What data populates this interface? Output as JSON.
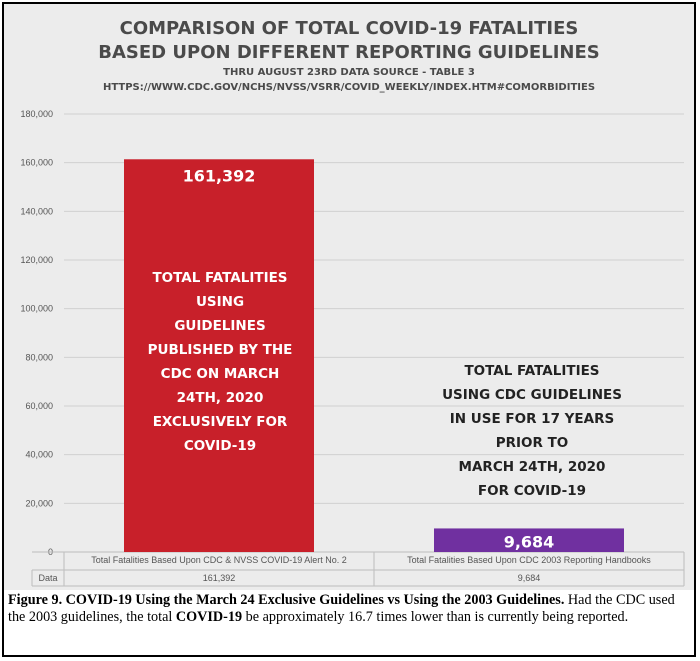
{
  "titles": {
    "line1": "COMPARISON OF TOTAL COVID-19 FATALITIES",
    "line2": "BASED UPON DIFFERENT REPORTING GUIDELINES",
    "line3": "THRU AUGUST 23RD DATA SOURCE - TABLE 3",
    "line4": "HTTPS://WWW.CDC.GOV/NCHS/NVSS/VSRR/COVID_WEEKLY/INDEX.HTM#COMORBIDITIES"
  },
  "chart_data": {
    "type": "bar",
    "categories": [
      "Total Fatalities Based Upon CDC & NVSS COVID-19 Alert No. 2",
      "Total Fatalities Based Upon CDC 2003 Reporting Handbooks"
    ],
    "values": [
      161392,
      9684
    ],
    "value_labels": [
      "161,392",
      "9,684"
    ],
    "colors": [
      "#c8202a",
      "#7030a0"
    ],
    "ylim": [
      0,
      180000
    ],
    "yticks": [
      0,
      20000,
      40000,
      60000,
      80000,
      100000,
      120000,
      140000,
      160000,
      180000
    ],
    "ytick_labels": [
      "0",
      "20,000",
      "40,000",
      "60,000",
      "80,000",
      "100,000",
      "120,000",
      "140,000",
      "160,000",
      "180,000"
    ],
    "grid": true,
    "table_row_label": "Data",
    "table_values": [
      "161,392",
      "9,684"
    ]
  },
  "annotations": {
    "bar1": [
      "TOTAL FATALITIES",
      "USING",
      "GUIDELINES",
      "PUBLISHED BY THE",
      "CDC ON MARCH",
      "24TH, 2020",
      "EXCLUSIVELY FOR",
      "COVID-19"
    ],
    "bar2": [
      "TOTAL FATALITIES",
      "USING CDC GUIDELINES",
      "IN USE FOR 17 YEARS",
      "PRIOR TO",
      "MARCH 24TH, 2020",
      "FOR COVID-19"
    ]
  },
  "caption": {
    "figure": "Figure 9.",
    "title_bold": "COVID-19 Using the March 24 Exclusive Guidelines vs Using the 2003 Guidelines.",
    "text_a": "Had the CDC used the 2003 guidelines, the total",
    "text_bold": "COVID-19",
    "text_b": "be approximately 16.7 times lower than is currently being reported."
  }
}
